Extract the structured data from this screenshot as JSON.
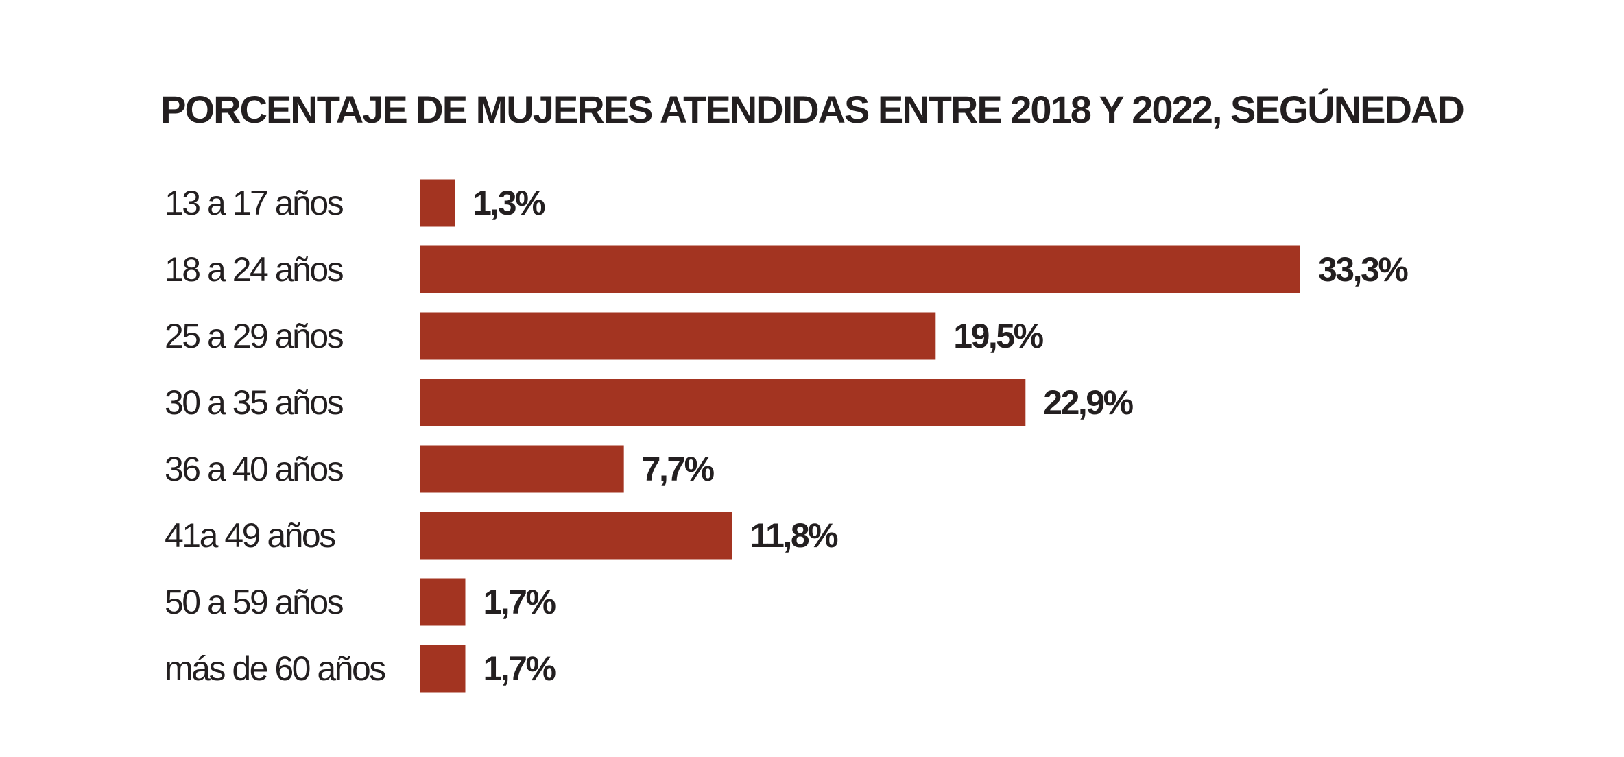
{
  "chart_data": {
    "type": "bar",
    "orientation": "horizontal",
    "title": "PORCENTAJE DE MUJERES ATENDIDAS ENTRE 2018 Y 2022, SEGÚNEDAD",
    "categories": [
      "13 a 17 años",
      "18 a 24 años",
      "25 a 29 años",
      "30 a 35 años",
      "36 a 40 años",
      "41a 49 años",
      "50 a 59 años",
      "más de 60 años"
    ],
    "values": [
      1.3,
      33.3,
      19.5,
      22.9,
      7.7,
      11.8,
      1.7,
      1.7
    ],
    "value_labels": [
      "1,3%",
      "33,3%",
      "19,5%",
      "22,9%",
      "7,7%",
      "11,8%",
      "1,7%",
      "1,7%"
    ],
    "unit": "%",
    "xlim": [
      0,
      33.3
    ],
    "grid": false,
    "legend": "none",
    "bar_color": "#a33421",
    "text_color": "#231f20"
  }
}
